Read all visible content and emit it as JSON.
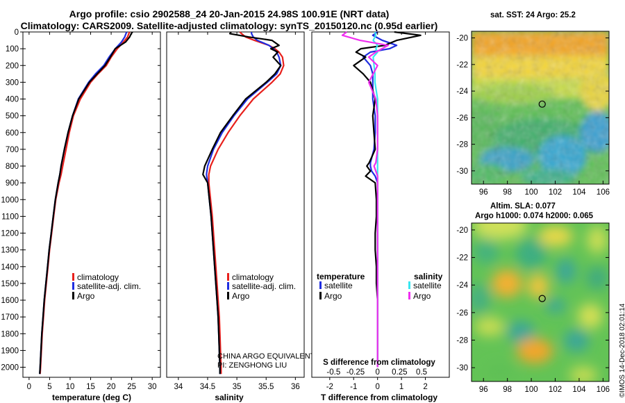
{
  "header": {
    "title_line1": "Argo profile: csio 2902588_24 20-Jan-2015 24.98S 100.91E (NRT data)",
    "title_line2": "Climatology: CARS2009. Satellite-adjusted climatology: synTS_20150120.nc (0.95d earlier)"
  },
  "colors": {
    "climatology": "#e8201c",
    "satellite_adj": "#1f2de0",
    "argo": "#000000",
    "satellite_salinity": "#38e6f0",
    "argo_salinity": "#f02ef0"
  },
  "depth_axis": {
    "ticks": [
      0,
      100,
      200,
      300,
      400,
      500,
      600,
      700,
      800,
      900,
      1000,
      1100,
      1200,
      1300,
      1400,
      1500,
      1600,
      1700,
      1800,
      1900,
      2000
    ],
    "range": [
      0,
      2060
    ]
  },
  "chart_data": [
    {
      "type": "line",
      "name": "temperature",
      "xlabel": "temperature (deg C)",
      "xlim": [
        -1.5,
        32
      ],
      "xticks": [
        0,
        5,
        10,
        15,
        20,
        25,
        30
      ],
      "legend": [
        "climatology",
        "satellite-adj. clim.",
        "Argo"
      ],
      "depth": [
        0,
        10,
        30,
        60,
        100,
        150,
        200,
        250,
        300,
        400,
        500,
        600,
        700,
        800,
        850,
        900,
        1000,
        1100,
        1200,
        1300,
        1400,
        1500,
        1600,
        1700,
        1800,
        1900,
        2000,
        2040
      ],
      "series": [
        {
          "name": "climatology",
          "values": [
            24.5,
            24.3,
            24.0,
            23.0,
            21.5,
            20.0,
            18.8,
            16.8,
            15.0,
            12.5,
            10.8,
            9.8,
            9.0,
            8.2,
            7.8,
            7.3,
            6.5,
            6.0,
            5.5,
            5.0,
            4.6,
            4.2,
            3.8,
            3.5,
            3.2,
            3.0,
            2.8,
            2.7
          ]
        },
        {
          "name": "satellite-adj. clim.",
          "values": [
            23.8,
            23.6,
            23.3,
            22.5,
            21.0,
            19.5,
            18.2,
            16.2,
            14.5,
            12.0,
            10.6,
            9.5,
            8.6,
            7.8,
            7.5,
            7.1,
            6.4,
            5.9,
            5.4,
            4.9,
            4.5,
            4.1,
            3.7,
            3.4,
            3.1,
            2.9,
            2.7,
            2.6
          ]
        },
        {
          "name": "Argo",
          "values": [
            25.2,
            24.9,
            24.5,
            23.5,
            21.0,
            19.8,
            18.5,
            16.6,
            14.7,
            12.1,
            10.6,
            9.5,
            8.6,
            7.8,
            7.5,
            7.1,
            6.4,
            5.9,
            5.4,
            4.9,
            4.5,
            4.1,
            3.7,
            3.4,
            3.1,
            2.9,
            2.7,
            2.6
          ]
        }
      ]
    },
    {
      "type": "line",
      "name": "salinity",
      "xlabel": "salinity",
      "xlim": [
        33.8,
        36.15
      ],
      "xticks": [
        34,
        34.5,
        35,
        35.5,
        36
      ],
      "legend": [
        "climatology",
        "satellite-adj. clim.",
        "Argo"
      ],
      "depth": [
        0,
        10,
        30,
        50,
        80,
        100,
        120,
        150,
        200,
        250,
        300,
        400,
        500,
        600,
        700,
        800,
        850,
        900,
        1000,
        1100,
        1200,
        1300,
        1400,
        1500,
        1600,
        1700,
        1800,
        1900,
        2000,
        2040
      ],
      "series": [
        {
          "name": "climatology",
          "values": [
            35.05,
            35.08,
            35.15,
            35.3,
            35.55,
            35.65,
            35.72,
            35.78,
            35.8,
            35.74,
            35.6,
            35.28,
            35.05,
            34.85,
            34.68,
            34.55,
            34.52,
            34.52,
            34.55,
            34.58,
            34.6,
            34.62,
            34.64,
            34.66,
            34.68,
            34.7,
            34.71,
            34.72,
            34.73,
            34.73
          ]
        },
        {
          "name": "satellite-adj. clim.",
          "values": [
            35.25,
            35.25,
            35.28,
            35.35,
            35.55,
            35.62,
            35.68,
            35.72,
            35.75,
            35.68,
            35.52,
            35.18,
            34.95,
            34.75,
            34.6,
            34.5,
            34.48,
            34.5,
            34.53,
            34.56,
            34.58,
            34.6,
            34.62,
            34.64,
            34.66,
            34.68,
            34.69,
            34.7,
            34.71,
            34.71
          ]
        },
        {
          "name": "Argo",
          "values": [
            34.9,
            34.88,
            35.2,
            35.6,
            35.72,
            35.58,
            35.7,
            35.62,
            35.75,
            35.65,
            35.5,
            35.15,
            34.93,
            34.72,
            34.58,
            34.45,
            34.42,
            34.5,
            34.53,
            34.56,
            34.58,
            34.6,
            34.62,
            34.64,
            34.66,
            34.68,
            34.69,
            34.7,
            34.71,
            34.71
          ]
        }
      ]
    },
    {
      "type": "line",
      "name": "difference",
      "xlabel": "T difference from climatology",
      "xlabel_top": "S difference from climatology",
      "xlim": [
        -2.75,
        3
      ],
      "xticks": [
        -2,
        -1,
        0,
        1,
        2
      ],
      "top_ticks": [
        -0.5,
        -0.25,
        0,
        0.25,
        0.5
      ],
      "top_tick_labels": [
        "-0.5",
        "-0.25",
        "0",
        "0.25",
        "0.5"
      ],
      "legend_temperature_title": "temperature",
      "legend_salinity_title": "salinity",
      "legend": [
        "satellite",
        "Argo",
        "satellite",
        "Argo"
      ],
      "t_depth": [
        0,
        20,
        50,
        80,
        100,
        120,
        150,
        200,
        250,
        300,
        400,
        500,
        600,
        700,
        780,
        800,
        830,
        860,
        900,
        1000,
        1100,
        1200,
        1300,
        1400,
        1500,
        1600,
        1700,
        1800,
        1900,
        2000
      ],
      "series": [
        {
          "name": "T satellite",
          "values": [
            0,
            -0.2,
            0.2,
            0.8,
            0.5,
            -0.3,
            -0.6,
            -0.3,
            -0.2,
            -0.2,
            -0.2,
            -0.1,
            -0.1,
            -0.15,
            -0.3,
            -0.3,
            -0.25,
            -0.1,
            0.0,
            0.0,
            0.0,
            0.0,
            0.0,
            0.0,
            0.0,
            0.0,
            0.0,
            0.0,
            0.0,
            0.0
          ]
        },
        {
          "name": "T Argo",
          "values": [
            0.7,
            1.8,
            0.8,
            0.3,
            -0.7,
            -0.9,
            -0.5,
            -1.0,
            -0.6,
            -0.3,
            -0.1,
            -0.2,
            -0.15,
            -0.1,
            -0.35,
            -0.45,
            -0.3,
            -0.5,
            -0.1,
            -0.05,
            -0.05,
            -0.1,
            -0.1,
            -0.05,
            -0.05,
            0.0,
            0.0,
            0.0,
            0.0,
            0.0
          ]
        },
        {
          "name": "S satellite",
          "values": [
            -0.03,
            -0.02,
            -0.05,
            0.0,
            -0.02,
            0.0,
            -0.05,
            -0.04,
            -0.03,
            -0.03,
            0.0,
            0.0,
            0.0,
            0.0,
            0.0,
            0.0,
            0.0,
            0.0,
            0.0,
            0.0,
            0.0,
            0.0,
            0.0,
            0.0,
            0.0,
            0.0,
            0.0,
            0.0,
            0.0,
            0.0
          ]
        },
        {
          "name": "S Argo",
          "values": [
            -0.35,
            -0.4,
            -0.2,
            0.12,
            0.05,
            -0.02,
            -0.1,
            0.0,
            -0.05,
            -0.1,
            -0.02,
            0.0,
            0.0,
            0.0,
            -0.02,
            -0.04,
            -0.02,
            0.0,
            0.0,
            0.0,
            0.0,
            0.0,
            0.0,
            0.0,
            0.0,
            0.0,
            0.0,
            0.0,
            0.0,
            0.0
          ]
        }
      ]
    },
    {
      "type": "heatmap",
      "name": "sst-map",
      "title": "sat. SST: 24 Argo: 25.2",
      "xticks": [
        96,
        98,
        100,
        102,
        104,
        106
      ],
      "yticks": [
        -20,
        -22,
        -24,
        -26,
        -28,
        -30
      ],
      "xlim": [
        95,
        106.5
      ],
      "ylim": [
        -31,
        -19.5
      ],
      "argo_position": [
        100.91,
        -24.98
      ]
    },
    {
      "type": "heatmap",
      "name": "sla-map",
      "title_line1": "Altim. SLA: 0.077",
      "title_line2": "Argo h1000: 0.074 h2000: 0.065",
      "xticks": [
        96,
        98,
        100,
        102,
        104,
        106
      ],
      "yticks": [
        -20,
        -22,
        -24,
        -26,
        -28,
        -30
      ],
      "xlim": [
        95,
        106.5
      ],
      "ylim": [
        -31,
        -19.5
      ],
      "argo_position": [
        100.91,
        -24.98
      ]
    }
  ],
  "pi_text": {
    "line1": "CHINA ARGO EQUIVALENT",
    "line2": "PI: ZENGHONG LIU"
  },
  "imos_stamp": "©IMOS 14-Dec-2018 02:01:14"
}
